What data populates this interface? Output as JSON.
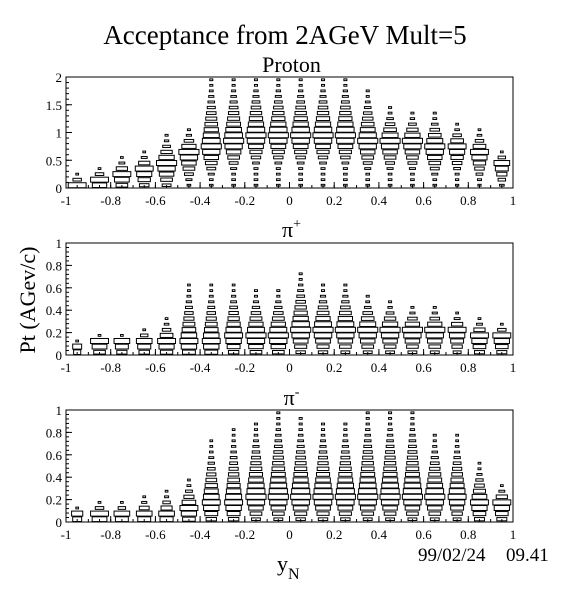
{
  "title": "Acceptance from 2AGeV Mult=5",
  "ylabel": "Pt (AGev/c)",
  "xlabel_main": "y",
  "xlabel_sub": "N",
  "datestamp": "99/02/24",
  "timestamp": "09.41",
  "chart_data": [
    {
      "type": "box",
      "panel": "proton",
      "title_main": "Proton",
      "title_sup": "",
      "xlim": [
        -1,
        1
      ],
      "ylim": [
        0,
        2
      ],
      "x_bin_width": 0.1,
      "y_bin_width": 0.1,
      "xticks": [
        "-1",
        "-0.8",
        "-0.6",
        "-0.4",
        "-0.2",
        "0",
        "0.2",
        "0.4",
        "0.6",
        "0.8",
        "1"
      ],
      "yticks": [
        "0",
        "0.5",
        "1",
        "1.5",
        "2"
      ],
      "x": [
        -0.95,
        -0.85,
        -0.75,
        -0.65,
        -0.55,
        -0.45,
        -0.35,
        -0.25,
        -0.15,
        -0.05,
        0.05,
        0.15,
        0.25,
        0.35,
        0.45,
        0.55,
        0.65,
        0.75,
        0.85,
        0.95
      ],
      "peak_y": [
        0.05,
        0.15,
        0.25,
        0.35,
        0.45,
        0.65,
        0.75,
        0.85,
        0.95,
        0.95,
        0.95,
        0.95,
        0.95,
        0.85,
        0.85,
        0.85,
        0.75,
        0.75,
        0.65,
        0.45
      ],
      "ymax": [
        0.25,
        0.35,
        0.55,
        0.65,
        0.95,
        1.05,
        1.95,
        1.95,
        1.95,
        1.95,
        1.95,
        1.95,
        1.95,
        1.75,
        1.45,
        1.35,
        1.35,
        1.15,
        1.05,
        0.65
      ],
      "peak_width": [
        0.08,
        0.08,
        0.08,
        0.08,
        0.09,
        0.09,
        0.09,
        0.09,
        0.09,
        0.09,
        0.09,
        0.09,
        0.09,
        0.09,
        0.09,
        0.09,
        0.09,
        0.08,
        0.08,
        0.07
      ],
      "spread": [
        0.6,
        0.7,
        0.8,
        0.9,
        1.0,
        1.0,
        1.0,
        1.0,
        1.05,
        1.05,
        1.05,
        1.05,
        1.05,
        1.0,
        1.0,
        1.0,
        1.0,
        0.9,
        0.9,
        0.8
      ]
    },
    {
      "type": "box",
      "panel": "pi-plus",
      "title_main": "π",
      "title_sup": "+",
      "xlim": [
        -1,
        1
      ],
      "ylim": [
        0,
        1
      ],
      "x_bin_width": 0.1,
      "y_bin_width": 0.05,
      "xticks": [
        "-1",
        "-0.8",
        "-0.6",
        "-0.4",
        "-0.2",
        "0",
        "0.2",
        "0.4",
        "0.6",
        "0.8",
        "1"
      ],
      "yticks": [
        "0",
        "0.2",
        "0.4",
        "0.6",
        "0.8",
        "1"
      ],
      "x": [
        -0.95,
        -0.85,
        -0.75,
        -0.65,
        -0.55,
        -0.45,
        -0.35,
        -0.25,
        -0.15,
        -0.05,
        0.05,
        0.15,
        0.25,
        0.35,
        0.45,
        0.55,
        0.65,
        0.75,
        0.85,
        0.95
      ],
      "peak_y": [
        0.075,
        0.125,
        0.125,
        0.125,
        0.125,
        0.125,
        0.125,
        0.175,
        0.175,
        0.175,
        0.225,
        0.225,
        0.225,
        0.225,
        0.225,
        0.225,
        0.225,
        0.225,
        0.175,
        0.175
      ],
      "ymax": [
        0.125,
        0.175,
        0.175,
        0.225,
        0.325,
        0.625,
        0.625,
        0.625,
        0.575,
        0.575,
        0.725,
        0.625,
        0.625,
        0.525,
        0.475,
        0.425,
        0.425,
        0.375,
        0.325,
        0.275
      ],
      "peak_width": [
        0.04,
        0.08,
        0.07,
        0.07,
        0.08,
        0.08,
        0.08,
        0.08,
        0.09,
        0.09,
        0.09,
        0.09,
        0.09,
        0.09,
        0.09,
        0.09,
        0.09,
        0.08,
        0.08,
        0.08
      ],
      "spread": [
        0.7,
        0.8,
        0.8,
        0.85,
        0.9,
        1.0,
        1.0,
        1.0,
        1.0,
        1.0,
        1.05,
        1.05,
        1.0,
        1.0,
        1.0,
        1.0,
        1.0,
        1.0,
        0.95,
        0.95
      ]
    },
    {
      "type": "box",
      "panel": "pi-minus",
      "title_main": "π",
      "title_sup": "-",
      "xlim": [
        -1,
        1
      ],
      "ylim": [
        0,
        1
      ],
      "x_bin_width": 0.1,
      "y_bin_width": 0.05,
      "xticks": [
        "-1",
        "-0.8",
        "-0.6",
        "-0.4",
        "-0.2",
        "0",
        "0.2",
        "0.4",
        "0.6",
        "0.8",
        "1"
      ],
      "yticks": [
        "0",
        "0.2",
        "0.4",
        "0.6",
        "0.8",
        "1"
      ],
      "x": [
        -0.95,
        -0.85,
        -0.75,
        -0.65,
        -0.55,
        -0.45,
        -0.35,
        -0.25,
        -0.15,
        -0.05,
        0.05,
        0.15,
        0.25,
        0.35,
        0.45,
        0.55,
        0.65,
        0.75,
        0.85,
        0.95
      ],
      "peak_y": [
        0.075,
        0.075,
        0.075,
        0.075,
        0.075,
        0.125,
        0.175,
        0.175,
        0.225,
        0.225,
        0.225,
        0.225,
        0.225,
        0.225,
        0.225,
        0.225,
        0.225,
        0.225,
        0.175,
        0.175
      ],
      "ymax": [
        0.125,
        0.175,
        0.175,
        0.225,
        0.275,
        0.375,
        0.725,
        0.825,
        0.875,
        0.975,
        0.925,
        0.875,
        0.875,
        0.975,
        0.975,
        0.975,
        0.775,
        0.775,
        0.525,
        0.325
      ],
      "peak_width": [
        0.05,
        0.08,
        0.07,
        0.07,
        0.07,
        0.08,
        0.08,
        0.08,
        0.09,
        0.09,
        0.09,
        0.09,
        0.09,
        0.09,
        0.09,
        0.09,
        0.09,
        0.08,
        0.08,
        0.08
      ],
      "spread": [
        0.7,
        0.8,
        0.8,
        0.8,
        0.85,
        0.95,
        1.0,
        1.0,
        1.0,
        1.0,
        1.05,
        1.05,
        1.05,
        1.0,
        1.0,
        1.0,
        1.0,
        1.0,
        0.95,
        0.95
      ]
    }
  ]
}
